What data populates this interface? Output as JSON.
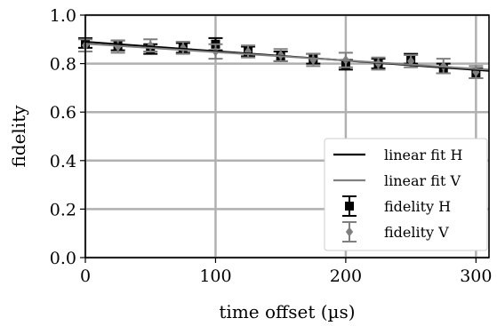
{
  "chart_data": {
    "type": "scatter",
    "title": "",
    "xlabel": "time offset (µs)",
    "ylabel": "fidelity",
    "xlim": [
      0,
      310
    ],
    "ylim": [
      0.0,
      1.0
    ],
    "xticks": [
      0,
      100,
      200,
      300
    ],
    "xtick_labels": [
      "0",
      "100",
      "200",
      "300"
    ],
    "yticks": [
      0.0,
      0.2,
      0.4,
      0.6,
      0.8,
      1.0
    ],
    "ytick_labels": [
      "0.0",
      "0.2",
      "0.4",
      "0.6",
      "0.8",
      "1.0"
    ],
    "grid": true,
    "legend_position": "bottom-right",
    "series": [
      {
        "name": "fidelity H",
        "kind": "errorbar",
        "color": "#000000",
        "marker": "square",
        "x": [
          0,
          25,
          50,
          75,
          100,
          125,
          150,
          175,
          200,
          225,
          250,
          275,
          300
        ],
        "y": [
          0.885,
          0.875,
          0.86,
          0.865,
          0.88,
          0.85,
          0.83,
          0.82,
          0.795,
          0.8,
          0.82,
          0.78,
          0.76
        ],
        "err": [
          0.02,
          0.02,
          0.02,
          0.02,
          0.025,
          0.02,
          0.02,
          0.02,
          0.02,
          0.02,
          0.02,
          0.02,
          0.02
        ]
      },
      {
        "name": "fidelity V",
        "kind": "errorbar",
        "color": "#7f7f7f",
        "marker": "diamond",
        "x": [
          0,
          25,
          50,
          75,
          100,
          125,
          150,
          175,
          200,
          225,
          250,
          275,
          300
        ],
        "y": [
          0.875,
          0.87,
          0.875,
          0.865,
          0.85,
          0.85,
          0.835,
          0.815,
          0.815,
          0.8,
          0.81,
          0.79,
          0.765
        ],
        "err": [
          0.025,
          0.025,
          0.025,
          0.025,
          0.03,
          0.025,
          0.025,
          0.025,
          0.03,
          0.025,
          0.025,
          0.03,
          0.025
        ]
      },
      {
        "name": "linear fit H",
        "kind": "line",
        "color": "#000000",
        "x": [
          0,
          310
        ],
        "y": [
          0.89,
          0.77
        ]
      },
      {
        "name": "linear fit V",
        "kind": "line",
        "color": "#7f7f7f",
        "x": [
          0,
          310
        ],
        "y": [
          0.882,
          0.775
        ]
      }
    ],
    "legend": [
      "linear fit H",
      "linear fit V",
      "fidelity H",
      "fidelity V"
    ]
  }
}
